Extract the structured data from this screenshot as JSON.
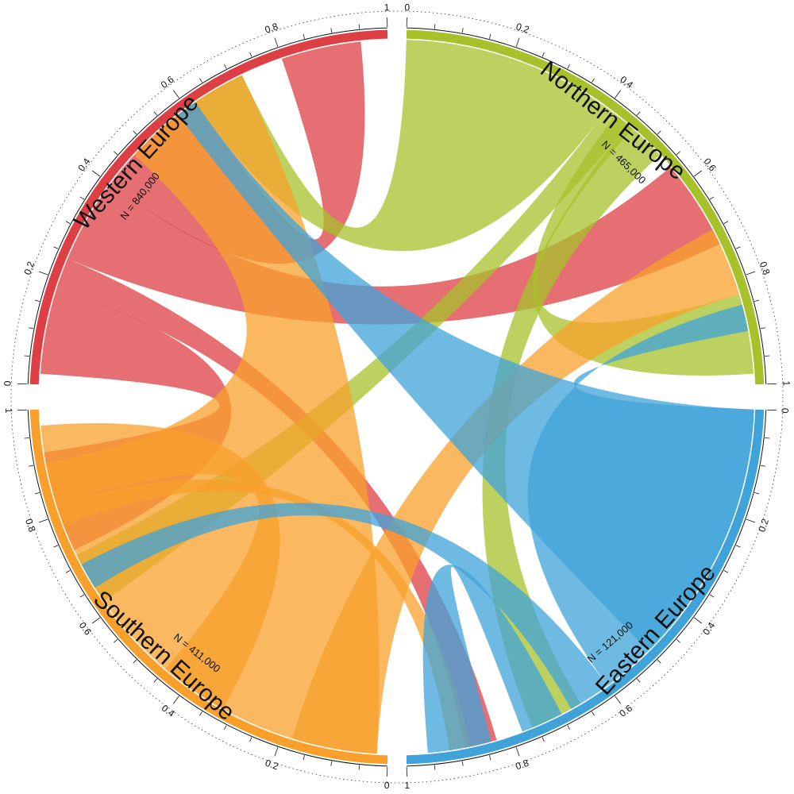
{
  "chart_data": {
    "type": "chord",
    "regions": [
      {
        "name": "Western Europe",
        "n_label": "N = 840,000",
        "color": "#dc3f44"
      },
      {
        "name": "Northern Europe",
        "n_label": "N = 465,000",
        "color": "#a7c12b"
      },
      {
        "name": "Eastern Europe",
        "n_label": "N = 121,000",
        "color": "#3fa3d9"
      },
      {
        "name": "Southern Europe",
        "n_label": "N = 411,000",
        "color": "#f8a02b"
      }
    ],
    "ticks": [
      "0",
      "0.2",
      "0.4",
      "0.6",
      "0.8",
      "1"
    ],
    "flows": [
      {
        "from": "Western Europe",
        "to": "Western Europe",
        "src": [
          0.8,
          0.95
        ],
        "dst": [
          0.4,
          0.62
        ]
      },
      {
        "from": "Western Europe",
        "to": "Northern Europe",
        "src": [
          0.24,
          0.4
        ],
        "dst": [
          0.56,
          0.73
        ]
      },
      {
        "from": "Western Europe",
        "to": "Southern Europe",
        "src": [
          0.02,
          0.18
        ],
        "dst": [
          0.73,
          0.92
        ]
      },
      {
        "from": "Western Europe",
        "to": "Eastern Europe",
        "src": [
          0.18,
          0.24
        ],
        "dst": [
          0.83,
          0.89
        ]
      },
      {
        "from": "Northern Europe",
        "to": "Western Europe",
        "src": [
          0.0,
          0.4
        ],
        "dst": [
          0.62,
          0.72
        ]
      },
      {
        "from": "Northern Europe",
        "to": "Southern Europe",
        "src": [
          0.4,
          0.45
        ],
        "dst": [
          0.62,
          0.72
        ]
      },
      {
        "from": "Northern Europe",
        "to": "Northern Europe",
        "src": [
          0.42,
          0.46
        ],
        "dst": [
          0.83,
          0.98
        ]
      },
      {
        "from": "Northern Europe",
        "to": "Eastern Europe",
        "src": [
          0.45,
          0.53
        ],
        "dst": [
          0.66,
          0.76
        ]
      },
      {
        "from": "Southern Europe",
        "to": "Western Europe",
        "src": [
          0.02,
          0.9
        ],
        "dst": [
          0.47,
          0.72
        ]
      },
      {
        "from": "Southern Europe",
        "to": "Northern Europe",
        "src": [
          0.02,
          0.18
        ],
        "dst": [
          0.7,
          0.83
        ]
      },
      {
        "from": "Southern Europe",
        "to": "Southern Europe",
        "src": [
          0.32,
          0.45
        ],
        "dst": [
          0.82,
          0.97
        ]
      },
      {
        "from": "Southern Europe",
        "to": "Eastern Europe",
        "src": [
          0.78,
          0.82
        ],
        "dst": [
          0.88,
          0.92
        ]
      },
      {
        "from": "Eastern Europe",
        "to": "Western Europe",
        "src": [
          0.0,
          0.5
        ],
        "dst": [
          0.58,
          0.62
        ]
      },
      {
        "from": "Eastern Europe",
        "to": "Northern Europe",
        "src": [
          0.0,
          0.6
        ],
        "dst": [
          0.85,
          0.9
        ]
      },
      {
        "from": "Eastern Europe",
        "to": "Southern Europe",
        "src": [
          0.6,
          0.68
        ],
        "dst": [
          0.65,
          0.7
        ]
      },
      {
        "from": "Eastern Europe",
        "to": "Eastern Europe",
        "src": [
          0.7,
          0.78
        ],
        "dst": [
          0.84,
          0.96
        ]
      }
    ]
  }
}
